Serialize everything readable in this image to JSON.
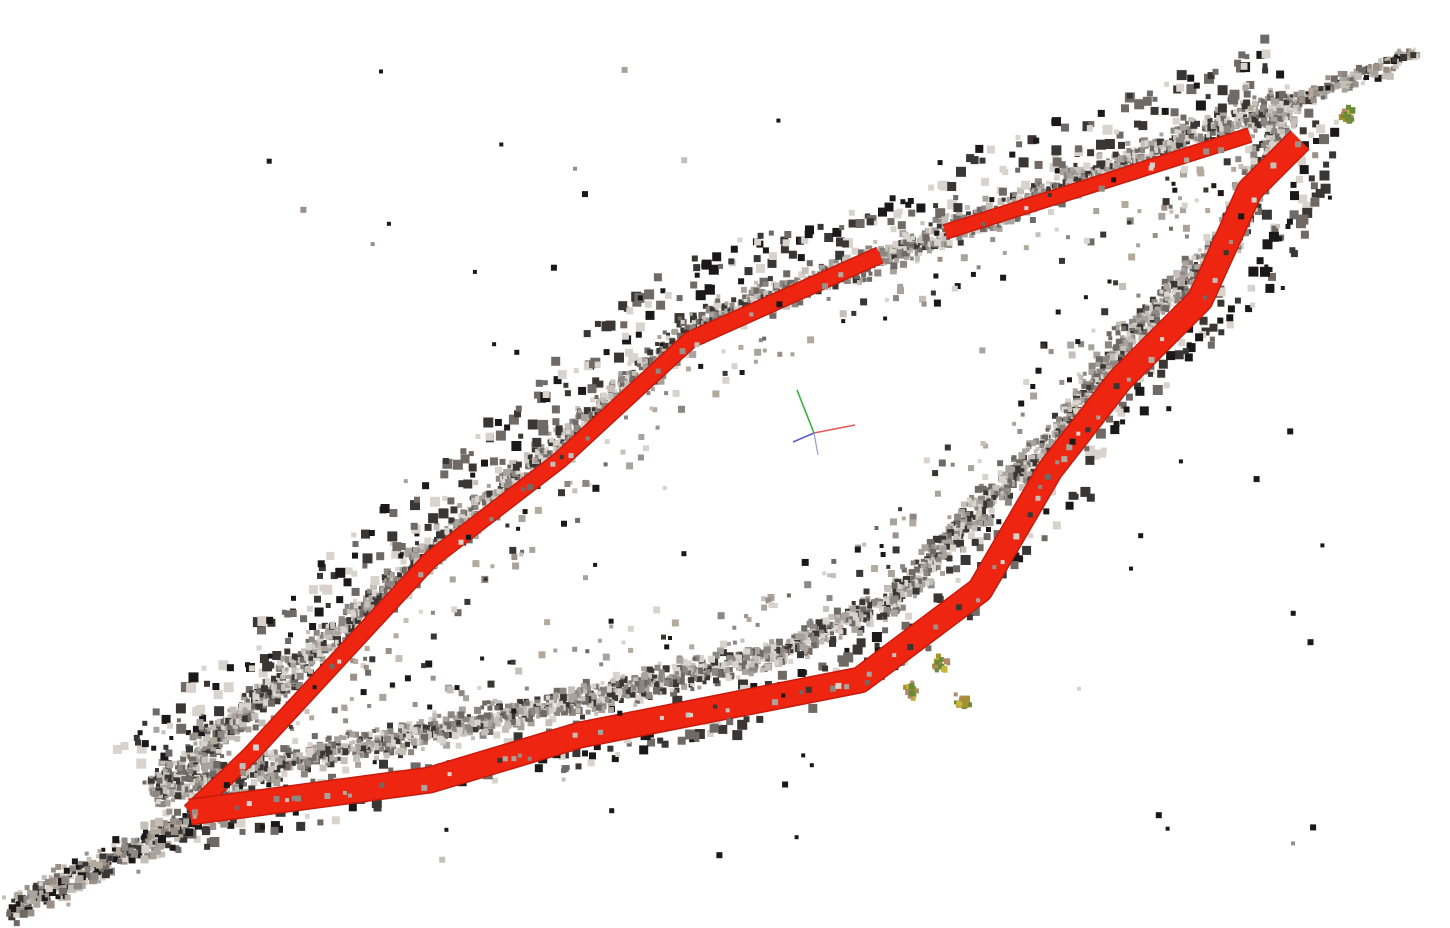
{
  "viewer": {
    "background_color": "#ffffff",
    "trajectory_color": "#ee2511",
    "trajectory_shade": "#c81a0c",
    "point_colors": [
      "#8c8782",
      "#a8a39d",
      "#c4bfb8",
      "#6f6a66",
      "#3a3634",
      "#d8d3cc",
      "#1a1818",
      "#b4aa9c",
      "#9a9088"
    ],
    "accent_point_colors": [
      "#c9b43a",
      "#a89030",
      "#6a8a3a",
      "#b08a6a"
    ],
    "axis_colors": {
      "x": "#e05a5a",
      "y": "#3ab03a",
      "z": "#5a5ad8",
      "neg": "#9a9ae0"
    }
  }
}
